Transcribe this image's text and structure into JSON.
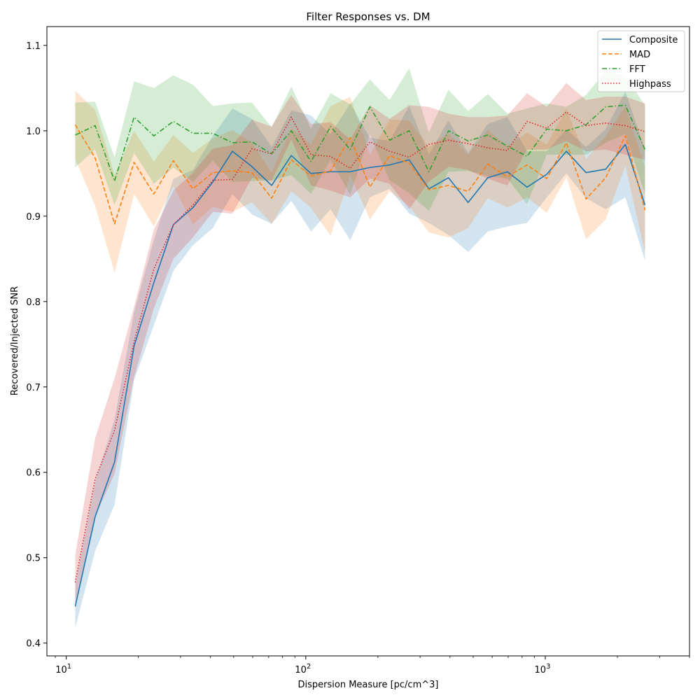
{
  "chart_data": {
    "type": "line",
    "title": "Filter Responses vs. DM",
    "xlabel": "Dispersion Measure [pc/cm^3]",
    "ylabel": "Recovered/Injected SNR",
    "xscale": "log",
    "xlim": [
      8.3,
      4000
    ],
    "ylim": [
      0.385,
      1.122
    ],
    "xticks": [
      {
        "value": 10,
        "base": "10",
        "exp": "1"
      },
      {
        "value": 100,
        "base": "10",
        "exp": "2"
      },
      {
        "value": 1000,
        "base": "10",
        "exp": "3"
      }
    ],
    "yticks": [
      0.4,
      0.5,
      0.6,
      0.7,
      0.8,
      0.9,
      1.0,
      1.1
    ],
    "ytick_labels": [
      "0.4",
      "0.5",
      "0.6",
      "0.7",
      "0.8",
      "0.9",
      "1.0",
      "1.1"
    ],
    "grid": false,
    "legend_position": "top-right",
    "x": [
      10.9,
      13.2,
      15.9,
      19.2,
      23.2,
      28.0,
      33.8,
      40.9,
      49.4,
      59.6,
      72.0,
      87.0,
      105.1,
      126.9,
      153.3,
      185.2,
      223.7,
      270.2,
      326.4,
      394.2,
      476.2,
      575.2,
      694.8,
      839.3,
      1013.9,
      1224.7,
      1479.4,
      1787.1,
      2158.7,
      2607.6
    ],
    "series": [
      {
        "name": "Composite",
        "color": "#1f77b4",
        "dash": "solid",
        "values": [
          0.443,
          0.548,
          0.612,
          0.748,
          0.822,
          0.89,
          0.91,
          0.94,
          0.976,
          0.958,
          0.936,
          0.971,
          0.95,
          0.952,
          0.952,
          0.957,
          0.96,
          0.966,
          0.932,
          0.945,
          0.916,
          0.945,
          0.952,
          0.934,
          0.949,
          0.976,
          0.951,
          0.955,
          0.984,
          0.913
        ],
        "lower": [
          0.418,
          0.508,
          0.562,
          0.708,
          0.772,
          0.836,
          0.866,
          0.886,
          0.926,
          0.902,
          0.891,
          0.918,
          0.882,
          0.908,
          0.872,
          0.922,
          0.932,
          0.903,
          0.892,
          0.878,
          0.858,
          0.882,
          0.888,
          0.892,
          0.922,
          0.95,
          0.921,
          0.908,
          0.922,
          0.848
        ],
        "upper": [
          0.468,
          0.588,
          0.662,
          0.788,
          0.872,
          0.944,
          0.954,
          0.994,
          1.026,
          1.014,
          0.981,
          1.024,
          1.018,
          0.996,
          1.032,
          0.992,
          0.988,
          1.029,
          0.972,
          1.012,
          0.974,
          1.008,
          1.016,
          0.976,
          0.976,
          1.002,
          0.981,
          1.002,
          1.046,
          0.978
        ]
      },
      {
        "name": "MAD",
        "color": "#ff7f0e",
        "dash": "dashed",
        "values": [
          1.007,
          0.968,
          0.891,
          0.963,
          0.926,
          0.965,
          0.932,
          0.951,
          0.953,
          0.951,
          0.921,
          0.966,
          0.947,
          0.953,
          0.992,
          0.934,
          0.971,
          0.962,
          0.931,
          0.936,
          0.929,
          0.961,
          0.946,
          0.96,
          0.944,
          0.986,
          0.92,
          0.945,
          0.994,
          0.907
        ],
        "lower": [
          0.967,
          0.912,
          0.834,
          0.926,
          0.888,
          0.935,
          0.89,
          0.911,
          0.905,
          0.916,
          0.891,
          0.929,
          0.91,
          0.877,
          0.948,
          0.896,
          0.929,
          0.912,
          0.881,
          0.875,
          0.886,
          0.921,
          0.91,
          0.922,
          0.904,
          0.946,
          0.873,
          0.896,
          0.959,
          0.857
        ],
        "upper": [
          1.047,
          1.024,
          0.948,
          1.0,
          0.964,
          0.995,
          0.974,
          0.991,
          1.001,
          0.986,
          0.951,
          1.003,
          0.984,
          1.029,
          1.04,
          0.972,
          1.013,
          1.012,
          0.981,
          0.997,
          0.972,
          1.001,
          0.982,
          0.998,
          0.984,
          1.026,
          0.967,
          0.994,
          1.029,
          0.957
        ]
      },
      {
        "name": "FFT",
        "color": "#2ca02c",
        "dash": "dashdot",
        "values": [
          0.995,
          1.006,
          0.941,
          1.016,
          0.994,
          1.011,
          0.997,
          0.997,
          0.986,
          0.987,
          0.973,
          1.0,
          0.964,
          1.005,
          0.978,
          1.028,
          0.989,
          1.0,
          0.952,
          1.0,
          0.988,
          0.995,
          0.982,
          0.97,
          1.002,
          1.0,
          1.007,
          1.028,
          1.03,
          0.978
        ],
        "lower": [
          0.957,
          0.978,
          0.913,
          0.974,
          0.938,
          0.957,
          0.94,
          0.965,
          0.94,
          0.941,
          0.942,
          0.948,
          0.926,
          0.966,
          0.925,
          0.996,
          0.942,
          0.927,
          0.906,
          0.952,
          0.953,
          0.947,
          0.944,
          0.914,
          0.972,
          0.972,
          0.972,
          0.986,
          0.996,
          0.926
        ],
        "upper": [
          1.033,
          1.034,
          0.969,
          1.058,
          1.05,
          1.065,
          1.054,
          1.029,
          1.032,
          1.033,
          1.004,
          1.052,
          1.002,
          1.044,
          1.031,
          1.06,
          1.036,
          1.073,
          0.998,
          1.048,
          1.023,
          1.043,
          1.02,
          1.026,
          1.032,
          1.028,
          1.042,
          1.07,
          1.064,
          1.03
        ]
      },
      {
        "name": "Highpass",
        "color": "#d62728",
        "dash": "dotted",
        "values": [
          0.471,
          0.592,
          0.649,
          0.753,
          0.838,
          0.89,
          0.913,
          0.942,
          0.943,
          0.979,
          0.973,
          1.016,
          0.972,
          0.97,
          0.956,
          0.987,
          0.976,
          0.969,
          0.984,
          0.989,
          0.985,
          0.98,
          0.977,
          1.011,
          1.003,
          1.022,
          1.006,
          1.009,
          1.006,
          0.999
        ],
        "lower": [
          0.443,
          0.548,
          0.598,
          0.712,
          0.792,
          0.85,
          0.875,
          0.905,
          0.903,
          0.945,
          0.941,
          0.99,
          0.936,
          0.93,
          0.922,
          0.944,
          0.938,
          0.908,
          0.94,
          0.958,
          0.954,
          0.944,
          0.936,
          0.978,
          0.978,
          0.988,
          0.976,
          0.978,
          0.972,
          0.966
        ],
        "upper": [
          0.503,
          0.64,
          0.71,
          0.794,
          0.884,
          0.93,
          0.951,
          0.979,
          0.983,
          1.013,
          1.005,
          1.042,
          1.008,
          1.01,
          0.99,
          1.03,
          1.014,
          1.03,
          1.028,
          1.02,
          1.016,
          1.016,
          1.018,
          1.044,
          1.028,
          1.056,
          1.036,
          1.04,
          1.04,
          1.032
        ]
      }
    ]
  }
}
